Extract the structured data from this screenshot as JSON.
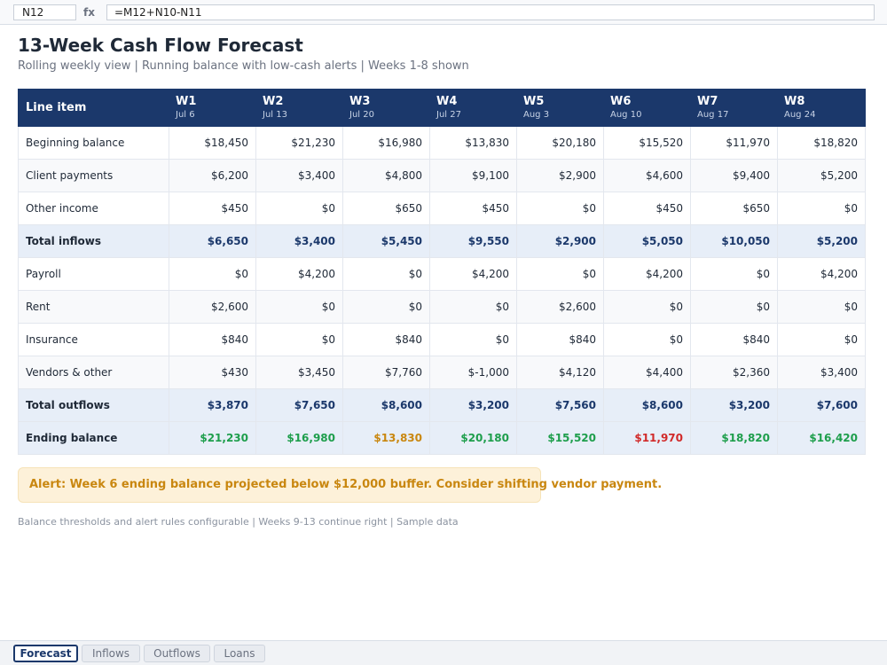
{
  "formula_bar": {
    "cell_ref": "N12",
    "fx_label": "fx",
    "formula": "=M12+N10-N11"
  },
  "header": {
    "title": "13-Week Cash Flow Forecast",
    "subtitle": "Rolling weekly view  |  Running balance with low-cash alerts  |  Weeks 1-8 shown"
  },
  "table": {
    "label_header": "Line item",
    "weeks": [
      {
        "label": "W1",
        "date": "Jul 6"
      },
      {
        "label": "W2",
        "date": "Jul 13"
      },
      {
        "label": "W3",
        "date": "Jul 20"
      },
      {
        "label": "W4",
        "date": "Jul 27"
      },
      {
        "label": "W5",
        "date": "Aug 3"
      },
      {
        "label": "W6",
        "date": "Aug 10"
      },
      {
        "label": "W7",
        "date": "Aug 17"
      },
      {
        "label": "W8",
        "date": "Aug 24"
      }
    ],
    "rows": [
      {
        "label": "Beginning balance",
        "style": "plain",
        "values": [
          "$18,450",
          "$21,230",
          "$16,980",
          "$13,830",
          "$20,180",
          "$15,520",
          "$11,970",
          "$18,820"
        ]
      },
      {
        "label": "Client payments",
        "style": "alt",
        "values": [
          "$6,200",
          "$3,400",
          "$4,800",
          "$9,100",
          "$2,900",
          "$4,600",
          "$9,400",
          "$5,200"
        ]
      },
      {
        "label": "Other income",
        "style": "plain",
        "values": [
          "$450",
          "$0",
          "$650",
          "$450",
          "$0",
          "$450",
          "$650",
          "$0"
        ]
      },
      {
        "label": "Total inflows",
        "style": "total",
        "values": [
          "$6,650",
          "$3,400",
          "$5,450",
          "$9,550",
          "$2,900",
          "$5,050",
          "$10,050",
          "$5,200"
        ]
      },
      {
        "label": "Payroll",
        "style": "plain",
        "values": [
          "$0",
          "$4,200",
          "$0",
          "$4,200",
          "$0",
          "$4,200",
          "$0",
          "$4,200"
        ]
      },
      {
        "label": "Rent",
        "style": "alt",
        "values": [
          "$2,600",
          "$0",
          "$0",
          "$0",
          "$2,600",
          "$0",
          "$0",
          "$0"
        ]
      },
      {
        "label": "Insurance",
        "style": "plain",
        "values": [
          "$840",
          "$0",
          "$840",
          "$0",
          "$840",
          "$0",
          "$840",
          "$0"
        ]
      },
      {
        "label": "Vendors & other",
        "style": "alt",
        "values": [
          "$430",
          "$3,450",
          "$7,760",
          "$-1,000",
          "$4,120",
          "$4,400",
          "$2,360",
          "$3,400"
        ]
      },
      {
        "label": "Total outflows",
        "style": "total",
        "values": [
          "$3,870",
          "$7,650",
          "$8,600",
          "$3,200",
          "$7,560",
          "$8,600",
          "$3,200",
          "$7,600"
        ]
      },
      {
        "label": "Ending balance",
        "style": "total",
        "values": [
          "$21,230",
          "$16,980",
          "$13,830",
          "$20,180",
          "$15,520",
          "$11,970",
          "$18,820",
          "$16,420"
        ],
        "status": [
          "ok",
          "ok",
          "warning",
          "ok",
          "ok",
          "low",
          "ok",
          "ok"
        ]
      }
    ]
  },
  "status_colors": {
    "ok": "#1e9e4c",
    "warning": "#c98710",
    "low": "#d12a2a"
  },
  "alert": {
    "text": "Alert: Week 6 ending balance projected below $12,000 buffer. Consider shifting vendor payment."
  },
  "footnote": "Balance thresholds and alert rules configurable  |  Weeks 9-13 continue right  |  Sample data",
  "sheet_tabs": [
    {
      "label": "Forecast",
      "active": true
    },
    {
      "label": "Inflows",
      "active": false
    },
    {
      "label": "Outflows",
      "active": false
    },
    {
      "label": "Loans",
      "active": false
    }
  ]
}
